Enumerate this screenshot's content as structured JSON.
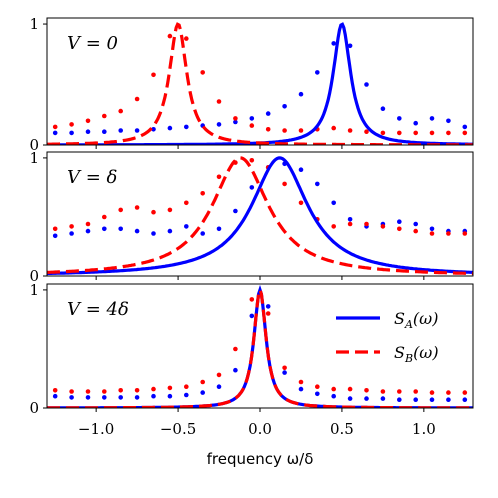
{
  "chart_data": [
    {
      "type": "line",
      "annotation": "V = 0",
      "ylim": [
        0,
        1.05
      ],
      "xlim": [
        -1.3,
        1.3
      ],
      "yticks": [
        "0",
        "1"
      ],
      "curves": [
        {
          "kind": "lorentzian",
          "center": 0.5,
          "width": 0.13,
          "baseline": 0.0,
          "color": "#0000ff",
          "style": "solid"
        },
        {
          "kind": "lorentzian",
          "center": -0.5,
          "width": 0.13,
          "baseline": 0.0,
          "color": "#ff0000",
          "style": "dashed"
        }
      ],
      "points": [
        {
          "color": "#0000ff",
          "x": [
            -1.25,
            -1.15,
            -1.05,
            -0.95,
            -0.85,
            -0.75,
            -0.65,
            -0.55,
            -0.45,
            -0.35,
            -0.25,
            -0.15,
            -0.05,
            0.05,
            0.15,
            0.25,
            0.35,
            0.45,
            0.55,
            0.65,
            0.75,
            0.85,
            0.95,
            1.05,
            1.15,
            1.25
          ],
          "y": [
            0.1,
            0.1,
            0.11,
            0.11,
            0.12,
            0.12,
            0.13,
            0.14,
            0.15,
            0.16,
            0.17,
            0.19,
            0.22,
            0.26,
            0.32,
            0.42,
            0.6,
            0.84,
            0.82,
            0.5,
            0.3,
            0.22,
            0.18,
            0.22,
            0.2,
            0.15
          ]
        },
        {
          "color": "#ff0000",
          "x": [
            -1.25,
            -1.15,
            -1.05,
            -0.95,
            -0.85,
            -0.75,
            -0.65,
            -0.55,
            -0.45,
            -0.35,
            -0.25,
            -0.15,
            -0.05,
            0.05,
            0.15,
            0.25,
            0.35,
            0.45,
            0.55,
            0.65,
            0.75,
            0.85,
            0.95,
            1.05,
            1.15,
            1.25
          ],
          "y": [
            0.15,
            0.17,
            0.2,
            0.24,
            0.28,
            0.38,
            0.58,
            0.9,
            0.88,
            0.6,
            0.36,
            0.22,
            0.16,
            0.13,
            0.12,
            0.12,
            0.13,
            0.14,
            0.12,
            0.11,
            0.1,
            0.1,
            0.1,
            0.1,
            0.1,
            0.1
          ]
        }
      ]
    },
    {
      "type": "line",
      "annotation": "V = δ",
      "ylim": [
        0,
        1.05
      ],
      "xlim": [
        -1.3,
        1.3
      ],
      "yticks": [
        "0",
        "1"
      ],
      "curves": [
        {
          "kind": "lorentzian",
          "center": 0.12,
          "width": 0.42,
          "baseline": 0.0,
          "color": "#0000ff",
          "style": "solid"
        },
        {
          "kind": "lorentzian",
          "center": -0.12,
          "width": 0.42,
          "baseline": 0.0,
          "color": "#ff0000",
          "style": "dashed"
        }
      ],
      "points": [
        {
          "color": "#0000ff",
          "x": [
            -1.25,
            -1.15,
            -1.05,
            -0.95,
            -0.85,
            -0.75,
            -0.65,
            -0.55,
            -0.45,
            -0.35,
            -0.25,
            -0.15,
            -0.05,
            0.05,
            0.15,
            0.25,
            0.35,
            0.45,
            0.55,
            0.65,
            0.75,
            0.85,
            0.95,
            1.05,
            1.15,
            1.25
          ],
          "y": [
            0.34,
            0.36,
            0.38,
            0.4,
            0.4,
            0.38,
            0.36,
            0.38,
            0.42,
            0.36,
            0.4,
            0.55,
            0.75,
            0.92,
            0.95,
            0.9,
            0.78,
            0.62,
            0.48,
            0.42,
            0.44,
            0.46,
            0.44,
            0.4,
            0.38,
            0.38
          ]
        },
        {
          "color": "#ff0000",
          "x": [
            -1.25,
            -1.15,
            -1.05,
            -0.95,
            -0.85,
            -0.75,
            -0.65,
            -0.55,
            -0.45,
            -0.35,
            -0.25,
            -0.15,
            -0.05,
            0.05,
            0.15,
            0.25,
            0.35,
            0.45,
            0.55,
            0.65,
            0.75,
            0.85,
            0.95,
            1.05,
            1.15,
            1.25
          ],
          "y": [
            0.4,
            0.42,
            0.44,
            0.5,
            0.56,
            0.58,
            0.54,
            0.56,
            0.62,
            0.7,
            0.84,
            0.96,
            0.98,
            0.92,
            0.78,
            0.62,
            0.48,
            0.42,
            0.44,
            0.44,
            0.42,
            0.4,
            0.38,
            0.36,
            0.36,
            0.36
          ]
        }
      ]
    },
    {
      "type": "line",
      "annotation": "V = 4δ",
      "ylim": [
        0,
        1.05
      ],
      "xlim": [
        -1.3,
        1.3
      ],
      "yticks": [
        "0",
        "1"
      ],
      "xticks": [
        "−1.0",
        "−0.5",
        "0.0",
        "0.5",
        "1.0"
      ],
      "xtick_values": [
        -1.0,
        -0.5,
        0.0,
        0.5,
        1.0
      ],
      "xlabel": "frequency ω/δ",
      "legend": {
        "placement": "top-right",
        "entries": [
          "S_A(ω)",
          "S_B(ω)"
        ]
      },
      "curves": [
        {
          "kind": "lorentzian",
          "center": 0.0,
          "width": 0.09,
          "baseline": 0.0,
          "color": "#0000ff",
          "style": "solid",
          "name": "S_A(ω)"
        },
        {
          "kind": "lorentzian",
          "center": 0.0,
          "width": 0.09,
          "baseline": 0.0,
          "color": "#ff0000",
          "style": "dashed",
          "name": "S_B(ω)"
        }
      ],
      "points": [
        {
          "color": "#0000ff",
          "x": [
            -1.25,
            -1.15,
            -1.05,
            -0.95,
            -0.85,
            -0.75,
            -0.65,
            -0.55,
            -0.45,
            -0.35,
            -0.25,
            -0.15,
            -0.05,
            0.05,
            0.15,
            0.25,
            0.35,
            0.45,
            0.55,
            0.65,
            0.75,
            0.85,
            0.95,
            1.05,
            1.15,
            1.25
          ],
          "y": [
            0.1,
            0.09,
            0.09,
            0.09,
            0.09,
            0.09,
            0.1,
            0.1,
            0.11,
            0.13,
            0.18,
            0.32,
            0.78,
            0.86,
            0.3,
            0.16,
            0.12,
            0.1,
            0.08,
            0.08,
            0.08,
            0.07,
            0.07,
            0.07,
            0.07,
            0.07
          ]
        },
        {
          "color": "#ff0000",
          "x": [
            -1.25,
            -1.15,
            -1.05,
            -0.95,
            -0.85,
            -0.75,
            -0.65,
            -0.55,
            -0.45,
            -0.35,
            -0.25,
            -0.15,
            -0.05,
            0.05,
            0.15,
            0.25,
            0.35,
            0.45,
            0.55,
            0.65,
            0.75,
            0.85,
            0.95,
            1.05,
            1.15,
            1.25
          ],
          "y": [
            0.15,
            0.14,
            0.14,
            0.14,
            0.15,
            0.15,
            0.16,
            0.17,
            0.18,
            0.22,
            0.28,
            0.5,
            0.92,
            0.8,
            0.34,
            0.22,
            0.18,
            0.16,
            0.16,
            0.15,
            0.14,
            0.14,
            0.14,
            0.13,
            0.13,
            0.13
          ]
        }
      ]
    }
  ]
}
